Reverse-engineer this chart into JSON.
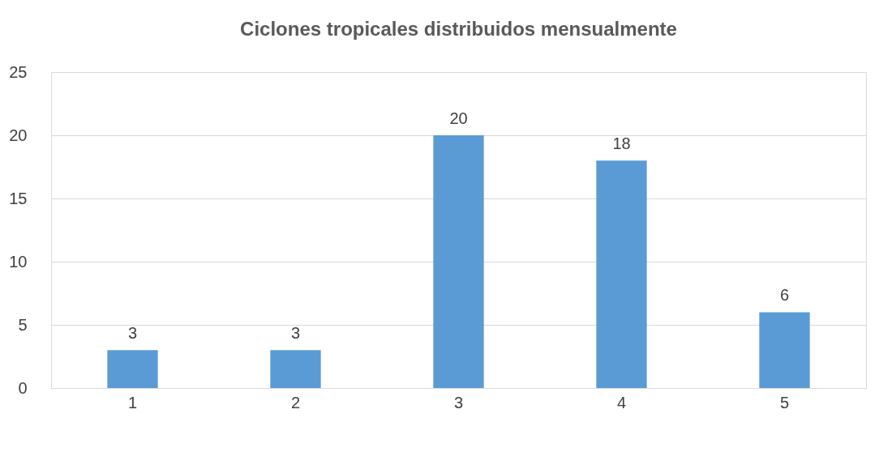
{
  "chart_data": {
    "type": "bar",
    "title": "Ciclones tropicales distribuidos mensualmente",
    "categories": [
      "1",
      "2",
      "3",
      "4",
      "5"
    ],
    "values": [
      3,
      3,
      20,
      18,
      6
    ],
    "color": "#5b9bd5",
    "ylim": [
      0,
      25
    ],
    "yticks": [
      0,
      5,
      10,
      15,
      20,
      25
    ],
    "grid": "y",
    "data_labels": true
  }
}
